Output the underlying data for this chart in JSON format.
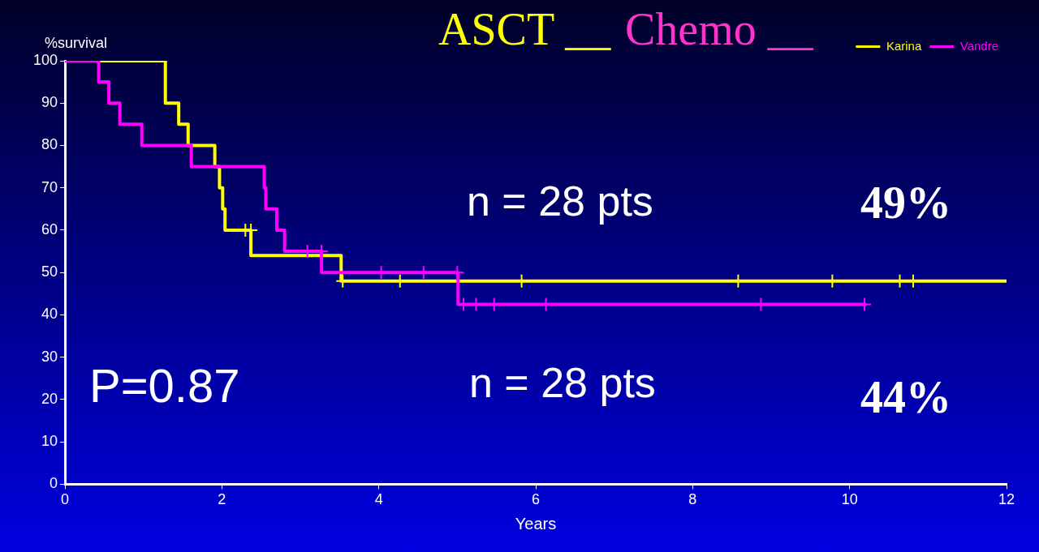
{
  "chart_data": {
    "type": "step",
    "ylabel": "%survival",
    "xlabel": "Years",
    "xlim": [
      0,
      12
    ],
    "xticks": [
      0,
      2,
      4,
      6,
      8,
      10,
      12
    ],
    "ylim": [
      0,
      100
    ],
    "yticks": [
      0,
      10,
      20,
      30,
      40,
      50,
      60,
      70,
      80,
      90,
      100
    ],
    "grid": false,
    "legend": "top right",
    "line_style": "solid",
    "annotations": [
      "ASCT __",
      "Chemo __",
      "n = 28 pts",
      "49%",
      "P=0.87",
      "n = 28 pts",
      "44%"
    ],
    "series": [
      {
        "name": "Karina",
        "color": "#ffff00",
        "marker": "none",
        "x": [
          0,
          1.28,
          1.45,
          1.57,
          1.91,
          1.97,
          2.01,
          2.04,
          2.37,
          3.52,
          12
        ],
        "values": [
          100,
          90,
          85,
          80,
          75,
          70,
          65,
          60,
          54,
          48,
          48
        ]
      },
      {
        "name": "Vandre",
        "color": "#ff00ff",
        "marker": "none",
        "x": [
          0,
          0.43,
          0.56,
          0.7,
          0.98,
          1.61,
          2.54,
          2.56,
          2.7,
          2.8,
          3.27,
          5.01,
          10.21
        ],
        "values": [
          100,
          95,
          90,
          85,
          80,
          75,
          70,
          65,
          60,
          55,
          50,
          42.5,
          42.5
        ]
      },
      {
        "type": "scatter",
        "color": "#ffff00",
        "marker": "cross",
        "x": [
          2.3,
          2.37,
          3.54,
          4.27,
          5.82,
          8.58,
          9.78,
          10.64,
          10.81
        ],
        "values": [
          60,
          60,
          48,
          48,
          48,
          48,
          48,
          48,
          48
        ]
      },
      {
        "type": "scatter",
        "color": "#ff00ff",
        "marker": "cross",
        "x": [
          3.09,
          3.27,
          4.03,
          4.57,
          5.0,
          5.08,
          5.24,
          5.47,
          6.13,
          8.87,
          10.19
        ],
        "values": [
          55,
          55,
          50,
          50,
          50,
          42.5,
          42.5,
          42.5,
          42.5,
          42.5,
          42.5
        ]
      }
    ]
  }
}
